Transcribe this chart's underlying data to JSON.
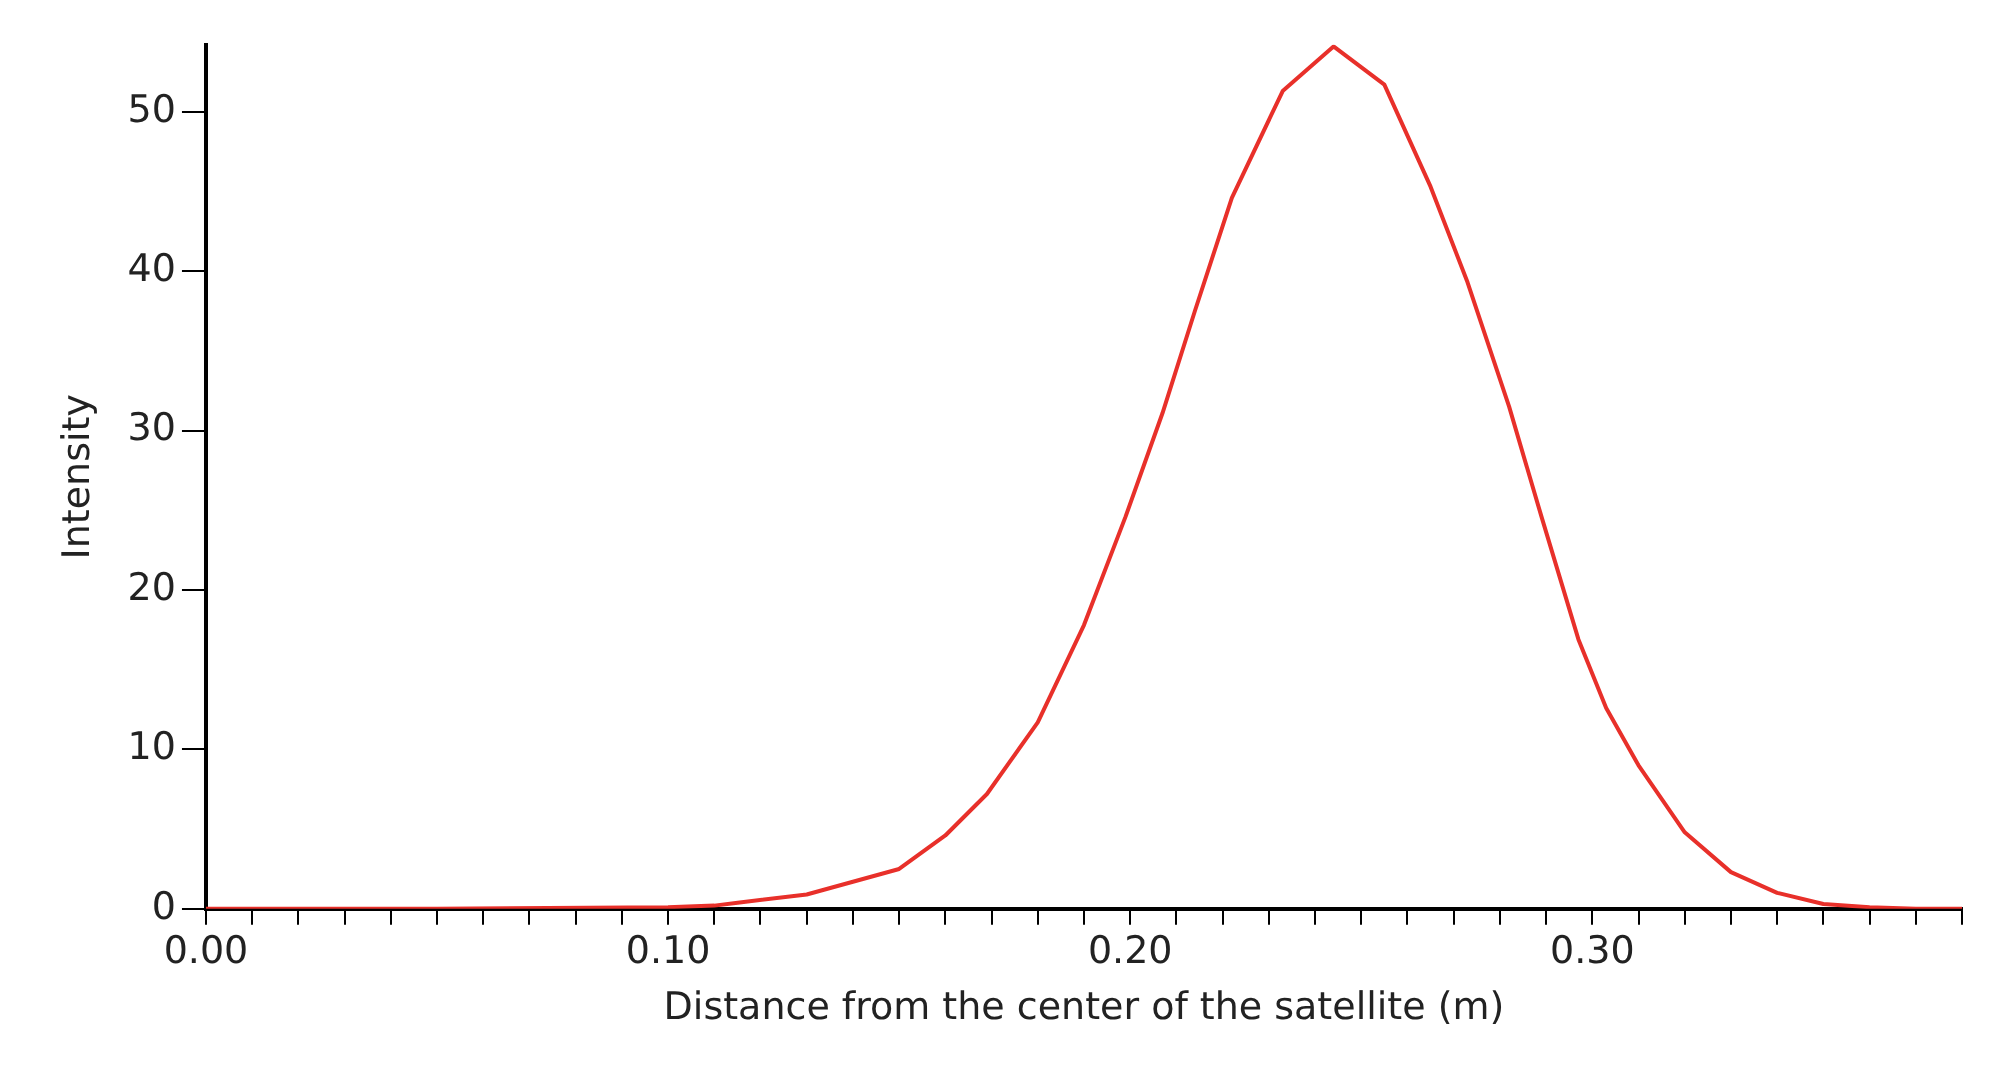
{
  "chart_data": {
    "type": "line",
    "xlabel": "Distance from the center of the satellite (m)",
    "ylabel": "Intensity",
    "xlim": [
      0,
      0.38
    ],
    "ylim": [
      0,
      54.2
    ],
    "xticks": [
      {
        "value": 0,
        "label": "0.00"
      },
      {
        "value": 0.01,
        "label": null
      },
      {
        "value": 0.02,
        "label": null
      },
      {
        "value": 0.03,
        "label": null
      },
      {
        "value": 0.04,
        "label": null
      },
      {
        "value": 0.05,
        "label": null
      },
      {
        "value": 0.06,
        "label": null
      },
      {
        "value": 0.07,
        "label": null
      },
      {
        "value": 0.08,
        "label": null
      },
      {
        "value": 0.09,
        "label": null
      },
      {
        "value": 0.1,
        "label": "0.10"
      },
      {
        "value": 0.11,
        "label": null
      },
      {
        "value": 0.12,
        "label": null
      },
      {
        "value": 0.13,
        "label": null
      },
      {
        "value": 0.14,
        "label": null
      },
      {
        "value": 0.15,
        "label": null
      },
      {
        "value": 0.16,
        "label": null
      },
      {
        "value": 0.17,
        "label": null
      },
      {
        "value": 0.18,
        "label": null
      },
      {
        "value": 0.19,
        "label": null
      },
      {
        "value": 0.2,
        "label": "0.20"
      },
      {
        "value": 0.21,
        "label": null
      },
      {
        "value": 0.22,
        "label": null
      },
      {
        "value": 0.23,
        "label": null
      },
      {
        "value": 0.24,
        "label": null
      },
      {
        "value": 0.25,
        "label": null
      },
      {
        "value": 0.26,
        "label": null
      },
      {
        "value": 0.27,
        "label": null
      },
      {
        "value": 0.28,
        "label": null
      },
      {
        "value": 0.29,
        "label": null
      },
      {
        "value": 0.3,
        "label": "0.30"
      },
      {
        "value": 0.31,
        "label": null
      },
      {
        "value": 0.32,
        "label": null
      },
      {
        "value": 0.33,
        "label": null
      },
      {
        "value": 0.34,
        "label": null
      },
      {
        "value": 0.35,
        "label": null
      },
      {
        "value": 0.36,
        "label": null
      },
      {
        "value": 0.37,
        "label": null
      },
      {
        "value": 0.38,
        "label": null
      }
    ],
    "yticks": [
      0,
      10,
      20,
      30,
      40,
      50
    ],
    "grid": false,
    "legend": false,
    "marker": "none",
    "line_style": "solid",
    "series": [
      {
        "color": "#e8302a",
        "x": [
          0,
          0.05,
          0.1,
          0.11,
          0.1155,
          0.13,
          0.15,
          0.16,
          0.169,
          0.18,
          0.19,
          0.199,
          0.207,
          0.214,
          0.222,
          0.233,
          0.244,
          0.255,
          0.265,
          0.273,
          0.282,
          0.289,
          0.297,
          0.303,
          0.31,
          0.32,
          0.33,
          0.34,
          0.35,
          0.36,
          0.37,
          0.38
        ],
        "values": [
          0,
          0,
          0.1,
          0.2,
          0.4,
          0.9,
          2.5,
          4.6,
          7.2,
          11.7,
          17.8,
          24.6,
          31.1,
          37.5,
          44.6,
          51.3,
          54.1,
          51.7,
          45.3,
          39.3,
          31.5,
          24.6,
          16.9,
          12.6,
          9.0,
          4.8,
          2.3,
          1.0,
          0.3,
          0.1,
          0,
          0
        ]
      }
    ]
  }
}
